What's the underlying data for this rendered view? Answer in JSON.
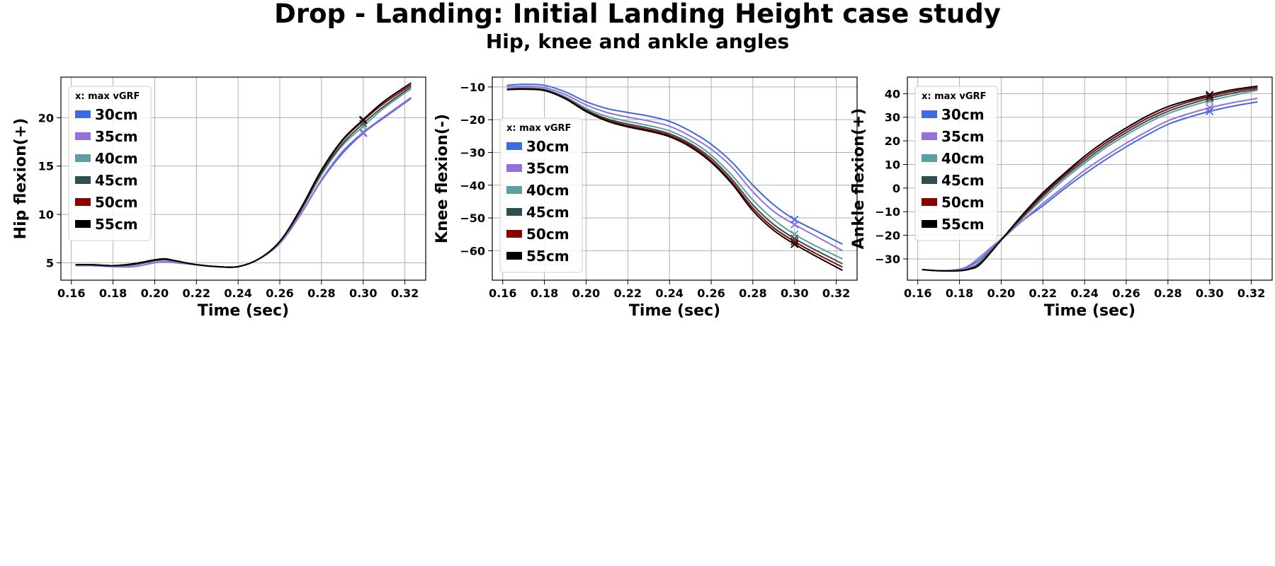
{
  "figure": {
    "title": "Drop - Landing: Initial Landing Height case study",
    "subtitle": "Hip, knee and ankle angles",
    "legend_title": "x: max vGRF",
    "marker_note": "x markers at max vGRF (t = 0.30 sec)"
  },
  "colors": {
    "30cm": "#4169e1",
    "35cm": "#9370db",
    "40cm": "#5f9ea0",
    "45cm": "#2f4f4f",
    "50cm": "#8b0000",
    "55cm": "#000000",
    "grid": "#b0b0b0",
    "axis": "#000000"
  },
  "chart_data": [
    {
      "type": "line",
      "xlabel": "Time (sec)",
      "ylabel": "Hip flexion(+)",
      "xlim": [
        0.155,
        0.33
      ],
      "ylim": [
        3.2,
        24.2
      ],
      "xticks": [
        "0.16",
        "0.18",
        "0.20",
        "0.22",
        "0.24",
        "0.26",
        "0.28",
        "0.30",
        "0.32"
      ],
      "yticks": [
        "5",
        "10",
        "15",
        "20"
      ],
      "grid": true,
      "legend_position": "upper-left",
      "marker_time": 0.3,
      "x": [
        0.162,
        0.17,
        0.18,
        0.19,
        0.2,
        0.205,
        0.21,
        0.22,
        0.23,
        0.24,
        0.25,
        0.26,
        0.27,
        0.28,
        0.29,
        0.3,
        0.31,
        0.323
      ],
      "series": [
        {
          "name": "30cm",
          "values": [
            4.7,
            4.7,
            4.6,
            4.6,
            5.0,
            5.1,
            5.0,
            4.8,
            4.6,
            4.6,
            5.4,
            7.0,
            10.0,
            13.5,
            16.3,
            18.4,
            20.0,
            22.0
          ]
        },
        {
          "name": "35cm",
          "values": [
            4.7,
            4.7,
            4.6,
            4.6,
            5.0,
            5.1,
            5.0,
            4.8,
            4.6,
            4.6,
            5.4,
            7.0,
            10.0,
            13.6,
            16.5,
            18.5,
            20.1,
            22.1
          ]
        },
        {
          "name": "40cm",
          "values": [
            4.8,
            4.8,
            4.7,
            4.8,
            5.2,
            5.3,
            5.1,
            4.8,
            4.6,
            4.6,
            5.4,
            7.1,
            10.3,
            14.1,
            17.1,
            19.1,
            21.0,
            23.0
          ]
        },
        {
          "name": "45cm",
          "values": [
            4.8,
            4.8,
            4.7,
            4.8,
            5.2,
            5.3,
            5.2,
            4.8,
            4.6,
            4.6,
            5.4,
            7.2,
            10.4,
            14.3,
            17.3,
            19.4,
            21.2,
            23.2
          ]
        },
        {
          "name": "50cm",
          "values": [
            4.8,
            4.8,
            4.7,
            4.9,
            5.3,
            5.4,
            5.2,
            4.8,
            4.6,
            4.6,
            5.4,
            7.2,
            10.5,
            14.5,
            17.6,
            19.7,
            21.5,
            23.4
          ]
        },
        {
          "name": "55cm",
          "values": [
            4.8,
            4.8,
            4.7,
            4.9,
            5.3,
            5.4,
            5.2,
            4.8,
            4.6,
            4.6,
            5.4,
            7.2,
            10.6,
            14.6,
            17.7,
            19.8,
            21.7,
            23.6
          ]
        }
      ]
    },
    {
      "type": "line",
      "xlabel": "Time (sec)",
      "ylabel": "Knee flexion(-)",
      "xlim": [
        0.155,
        0.33
      ],
      "ylim": [
        -69,
        -7
      ],
      "xticks": [
        "0.16",
        "0.18",
        "0.20",
        "0.22",
        "0.24",
        "0.26",
        "0.28",
        "0.30",
        "0.32"
      ],
      "yticks": [
        "−10",
        "−20",
        "−30",
        "−40",
        "−50",
        "−60"
      ],
      "grid": true,
      "legend_position": "center-left",
      "marker_time": 0.3,
      "x": [
        0.162,
        0.17,
        0.18,
        0.19,
        0.2,
        0.21,
        0.22,
        0.23,
        0.24,
        0.25,
        0.26,
        0.27,
        0.28,
        0.29,
        0.3,
        0.31,
        0.323
      ],
      "series": [
        {
          "name": "30cm",
          "values": [
            -9.5,
            -9.2,
            -9.5,
            -11.5,
            -14.5,
            -16.6,
            -17.8,
            -18.9,
            -20.5,
            -23.5,
            -27.5,
            -33.0,
            -40.0,
            -46.0,
            -50.5,
            -53.8,
            -58.0
          ]
        },
        {
          "name": "35cm",
          "values": [
            -10.0,
            -9.8,
            -10.2,
            -12.3,
            -15.5,
            -17.8,
            -19.2,
            -20.4,
            -22.0,
            -25.0,
            -29.0,
            -34.5,
            -42.0,
            -48.0,
            -52.0,
            -55.5,
            -60.0
          ]
        },
        {
          "name": "40cm",
          "values": [
            -10.5,
            -10.3,
            -10.7,
            -13.0,
            -16.5,
            -19.0,
            -20.5,
            -21.8,
            -23.4,
            -26.4,
            -30.8,
            -37.0,
            -44.5,
            -50.5,
            -55.0,
            -58.5,
            -62.5
          ]
        },
        {
          "name": "45cm",
          "values": [
            -10.7,
            -10.5,
            -10.9,
            -13.3,
            -17.0,
            -19.7,
            -21.3,
            -22.6,
            -24.3,
            -27.3,
            -31.8,
            -38.2,
            -46.0,
            -52.0,
            -56.3,
            -59.8,
            -64.0
          ]
        },
        {
          "name": "50cm",
          "values": [
            -10.8,
            -10.6,
            -11.0,
            -13.5,
            -17.3,
            -20.1,
            -21.8,
            -23.1,
            -24.8,
            -27.8,
            -32.5,
            -39.0,
            -47.0,
            -53.0,
            -57.2,
            -60.8,
            -65.0
          ]
        },
        {
          "name": "55cm",
          "values": [
            -10.8,
            -10.7,
            -11.1,
            -13.6,
            -17.5,
            -20.4,
            -22.2,
            -23.5,
            -25.2,
            -28.3,
            -33.0,
            -39.6,
            -47.8,
            -53.8,
            -58.0,
            -61.6,
            -66.0
          ]
        }
      ]
    },
    {
      "type": "line",
      "xlabel": "Time (sec)",
      "ylabel": "Ankle flexion(+)",
      "xlim": [
        0.155,
        0.33
      ],
      "ylim": [
        -39,
        47
      ],
      "xticks": [
        "0.16",
        "0.18",
        "0.20",
        "0.22",
        "0.24",
        "0.26",
        "0.28",
        "0.30",
        "0.32"
      ],
      "yticks": [
        "40",
        "30",
        "20",
        "10",
        "0",
        "−10",
        "−20",
        "−30"
      ],
      "grid": true,
      "legend_position": "upper-left",
      "marker_time": 0.3,
      "x": [
        0.162,
        0.17,
        0.18,
        0.185,
        0.19,
        0.2,
        0.21,
        0.22,
        0.23,
        0.24,
        0.25,
        0.26,
        0.27,
        0.28,
        0.29,
        0.3,
        0.31,
        0.323
      ],
      "series": [
        {
          "name": "30cm",
          "values": [
            -34.5,
            -35.0,
            -34.5,
            -33.0,
            -30.0,
            -22.0,
            -14.0,
            -7.5,
            -0.5,
            6.0,
            12.0,
            17.5,
            22.5,
            27.0,
            30.0,
            32.5,
            34.5,
            36.5
          ]
        },
        {
          "name": "35cm",
          "values": [
            -34.5,
            -35.0,
            -34.3,
            -32.5,
            -29.0,
            -21.5,
            -14.0,
            -6.5,
            0.5,
            7.5,
            13.5,
            19.0,
            24.0,
            28.5,
            31.5,
            34.0,
            36.0,
            38.0
          ]
        },
        {
          "name": "40cm",
          "values": [
            -34.5,
            -35.0,
            -34.8,
            -33.8,
            -31.0,
            -22.0,
            -13.0,
            -4.5,
            3.5,
            10.5,
            17.0,
            22.5,
            27.5,
            31.5,
            34.5,
            37.0,
            39.0,
            41.5
          ]
        },
        {
          "name": "45cm",
          "values": [
            -34.5,
            -35.0,
            -34.9,
            -34.0,
            -31.5,
            -22.0,
            -12.5,
            -3.5,
            4.5,
            11.5,
            18.0,
            23.5,
            28.5,
            32.5,
            35.5,
            38.0,
            40.0,
            42.0
          ]
        },
        {
          "name": "50cm",
          "values": [
            -34.5,
            -35.0,
            -35.0,
            -34.2,
            -32.0,
            -22.0,
            -12.0,
            -2.8,
            5.3,
            12.5,
            19.0,
            24.5,
            29.5,
            33.5,
            36.5,
            38.8,
            40.8,
            42.6
          ]
        },
        {
          "name": "55cm",
          "values": [
            -34.5,
            -35.0,
            -35.0,
            -34.3,
            -32.2,
            -22.0,
            -11.5,
            -2.0,
            6.0,
            13.5,
            20.0,
            25.5,
            30.5,
            34.5,
            37.2,
            39.5,
            41.5,
            43.2
          ]
        }
      ]
    }
  ]
}
